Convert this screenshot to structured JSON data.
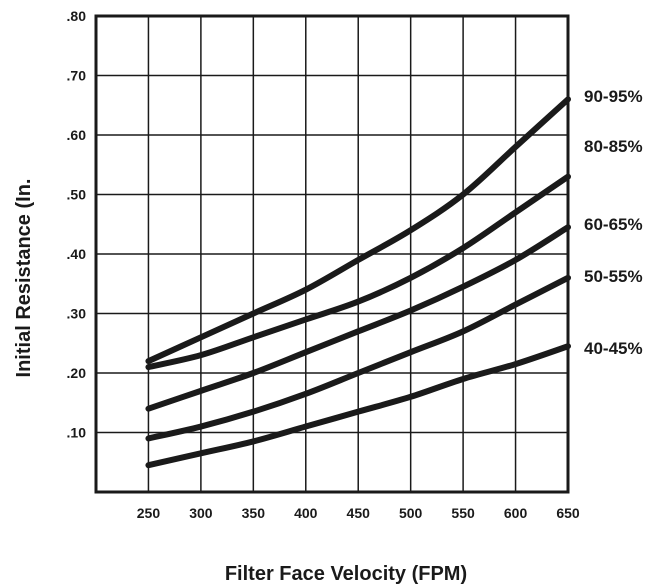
{
  "chart_data": {
    "type": "line",
    "title": "",
    "xlabel": "Filter Face Velocity (FPM)",
    "ylabel": "Initial Resistance   (In.",
    "xlim": [
      200,
      650
    ],
    "ylim": [
      0,
      0.8
    ],
    "grid": true,
    "x_ticks": [
      250,
      300,
      350,
      400,
      450,
      500,
      550,
      600,
      650
    ],
    "x_tick_labels": [
      "250",
      "300",
      "350",
      "400",
      "450",
      "500",
      "550",
      "600",
      "650"
    ],
    "y_ticks": [
      0.1,
      0.2,
      0.3,
      0.4,
      0.5,
      0.6,
      0.7,
      0.8
    ],
    "y_tick_labels": [
      ".10",
      ".20",
      ".30",
      ".40",
      ".50",
      ".60",
      ".70",
      ".80"
    ],
    "x": [
      250,
      300,
      350,
      400,
      450,
      500,
      550,
      600,
      650
    ],
    "series": [
      {
        "name": "90-95%",
        "values": [
          0.22,
          0.26,
          0.3,
          0.34,
          0.39,
          0.44,
          0.5,
          0.58,
          0.66
        ]
      },
      {
        "name": "80-85%",
        "values": [
          0.21,
          0.23,
          0.26,
          0.29,
          0.32,
          0.36,
          0.41,
          0.47,
          0.53
        ]
      },
      {
        "name": "60-65%",
        "values": [
          0.14,
          0.17,
          0.2,
          0.235,
          0.27,
          0.305,
          0.345,
          0.39,
          0.445
        ]
      },
      {
        "name": "50-55%",
        "values": [
          0.09,
          0.11,
          0.135,
          0.165,
          0.2,
          0.235,
          0.27,
          0.315,
          0.36
        ]
      },
      {
        "name": "40-45%",
        "values": [
          0.045,
          0.065,
          0.085,
          0.11,
          0.135,
          0.16,
          0.19,
          0.215,
          0.245
        ]
      }
    ]
  }
}
